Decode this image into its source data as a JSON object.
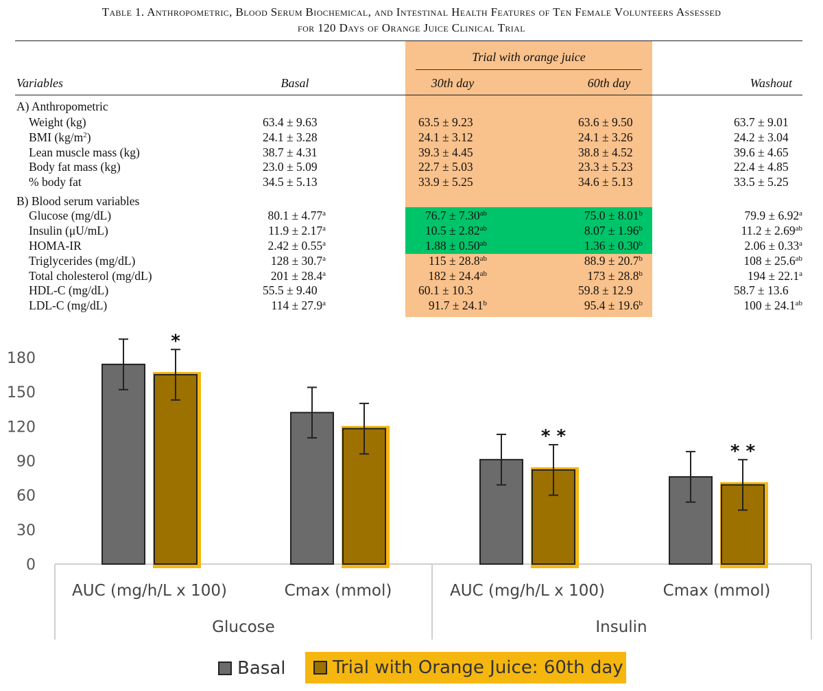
{
  "table": {
    "caption_line1": "Table 1. Anthropometric, Blood Serum Biochemical, and Intestinal Health Features of Ten Female Volunteers Assessed",
    "caption_line2": "for 120 Days of Orange Juice Clinical Trial",
    "group_header": "Trial with orange juice",
    "headers": {
      "variables": "Variables",
      "basal": "Basal",
      "day30": "30th day",
      "day60": "60th day",
      "washout": "Washout"
    },
    "sections": [
      {
        "title": "A) Anthropometric",
        "rows": [
          {
            "label": "Weight (kg)",
            "basal": [
              "63.4 ± 9.63",
              ""
            ],
            "d30": [
              "63.5 ± 9.23",
              ""
            ],
            "d60": [
              "63.6 ± 9.50",
              ""
            ],
            "washout": [
              "63.7 ± 9.01",
              ""
            ]
          },
          {
            "label": "BMI (kg/m",
            "label_sup": "2",
            "label_end": ")",
            "basal": [
              "24.1 ± 3.28",
              ""
            ],
            "d30": [
              "24.1 ± 3.12",
              ""
            ],
            "d60": [
              "24.1 ± 3.26",
              ""
            ],
            "washout": [
              "24.2 ± 3.04",
              ""
            ]
          },
          {
            "label": "Lean muscle mass (kg)",
            "basal": [
              "38.7 ± 4.31",
              ""
            ],
            "d30": [
              "39.3 ± 4.45",
              ""
            ],
            "d60": [
              "38.8 ± 4.52",
              ""
            ],
            "washout": [
              "39.6 ± 4.65",
              ""
            ]
          },
          {
            "label": "Body fat mass (kg)",
            "basal": [
              "23.0 ± 5.09",
              ""
            ],
            "d30": [
              "22.7 ± 5.03",
              ""
            ],
            "d60": [
              "23.3 ± 5.23",
              ""
            ],
            "washout": [
              "22.4 ± 4.85",
              ""
            ]
          },
          {
            "label": "% body fat",
            "basal": [
              "34.5 ± 5.13",
              ""
            ],
            "d30": [
              "33.9 ± 5.25",
              ""
            ],
            "d60": [
              "34.6 ± 5.13",
              ""
            ],
            "washout": [
              "33.5 ± 5.25",
              ""
            ]
          }
        ]
      },
      {
        "title": "B) Blood serum variables",
        "rows": [
          {
            "label": "Glucose (mg/dL)",
            "basal": [
              "80.1 ± 4.77",
              "a"
            ],
            "d30": [
              "76.7 ± 7.30",
              "ab"
            ],
            "d60": [
              "75.0 ± 8.01",
              "b"
            ],
            "washout": [
              "79.9 ± 6.92",
              "a"
            ]
          },
          {
            "label": "Insulin (μU/mL)",
            "basal": [
              "11.9 ± 2.17",
              "a"
            ],
            "d30": [
              "10.5 ± 2.82",
              "ab"
            ],
            "d60": [
              "8.07 ± 1.96",
              "b"
            ],
            "washout": [
              "11.2 ± 2.69",
              "ab"
            ]
          },
          {
            "label": "HOMA-IR",
            "basal": [
              "2.42 ± 0.55",
              "a"
            ],
            "d30": [
              "1.88 ± 0.50",
              "ab"
            ],
            "d60": [
              "1.36 ± 0.30",
              "b"
            ],
            "washout": [
              "2.06 ± 0.33",
              "a"
            ]
          },
          {
            "label": "Triglycerides (mg/dL)",
            "basal": [
              "128 ± 30.7",
              "a"
            ],
            "d30": [
              "115 ± 28.8",
              "ab"
            ],
            "d60": [
              "88.9 ± 20.7",
              "b"
            ],
            "washout": [
              "108 ± 25.6",
              "ab"
            ]
          },
          {
            "label": "Total cholesterol (mg/dL)",
            "basal": [
              "201 ± 28.4",
              "a"
            ],
            "d30": [
              "182 ± 24.4",
              "ab"
            ],
            "d60": [
              "173 ± 28.8",
              "b"
            ],
            "washout": [
              "194 ± 22.1",
              "a"
            ]
          },
          {
            "label": "HDL-C (mg/dL)",
            "basal": [
              "55.5 ± 9.40",
              ""
            ],
            "d30": [
              "60.1 ± 10.3",
              ""
            ],
            "d60": [
              "59.8 ± 12.9",
              ""
            ],
            "washout": [
              "58.7 ± 13.6",
              ""
            ]
          },
          {
            "label": "LDL-C (mg/dL)",
            "basal": [
              "114 ± 27.9",
              "a"
            ],
            "d30": [
              "91.7 ± 24.1",
              "b"
            ],
            "d60": [
              "95.4 ± 19.6",
              "b"
            ],
            "washout": [
              "100 ± 24.1",
              "ab"
            ]
          }
        ]
      }
    ],
    "highlight_colors": {
      "trial_columns": "#f9c18b",
      "significant_rows": "#00c46a"
    }
  },
  "chart_data": {
    "type": "bar",
    "title": "",
    "xlabel": "",
    "ylabel": "",
    "ylim": [
      0,
      180
    ],
    "yticks": [
      0,
      30,
      60,
      90,
      120,
      150,
      180
    ],
    "groups": [
      {
        "name": "Glucose",
        "categories": [
          "AUC (mg/h/L x 100)",
          "Cmax (mmol)"
        ]
      },
      {
        "name": "Insulin",
        "categories": [
          "AUC (mg/h/L x 100)",
          "Cmax (mmol)"
        ]
      }
    ],
    "categories": [
      "AUC (mg/h/L x 100)",
      "Cmax (mmol)",
      "AUC (mg/h/L x 100)",
      "Cmax (mmol)"
    ],
    "series": [
      {
        "name": "Basal",
        "color": "#6b6b6b",
        "values": [
          174,
          132,
          91,
          76
        ],
        "errors": [
          22,
          22,
          22,
          22
        ]
      },
      {
        "name": "Trial with Orange Juice: 60th day",
        "color": "#9c7100",
        "highlight": "#f5b60f",
        "values": [
          165,
          118,
          82,
          69
        ],
        "errors": [
          22,
          22,
          22,
          22
        ]
      }
    ],
    "annotations": [
      {
        "category_index": 0,
        "series_index": 1,
        "text": "*"
      },
      {
        "category_index": 2,
        "series_index": 1,
        "text": "* *"
      },
      {
        "category_index": 3,
        "series_index": 1,
        "text": "* *"
      }
    ],
    "legend_position": "bottom"
  }
}
